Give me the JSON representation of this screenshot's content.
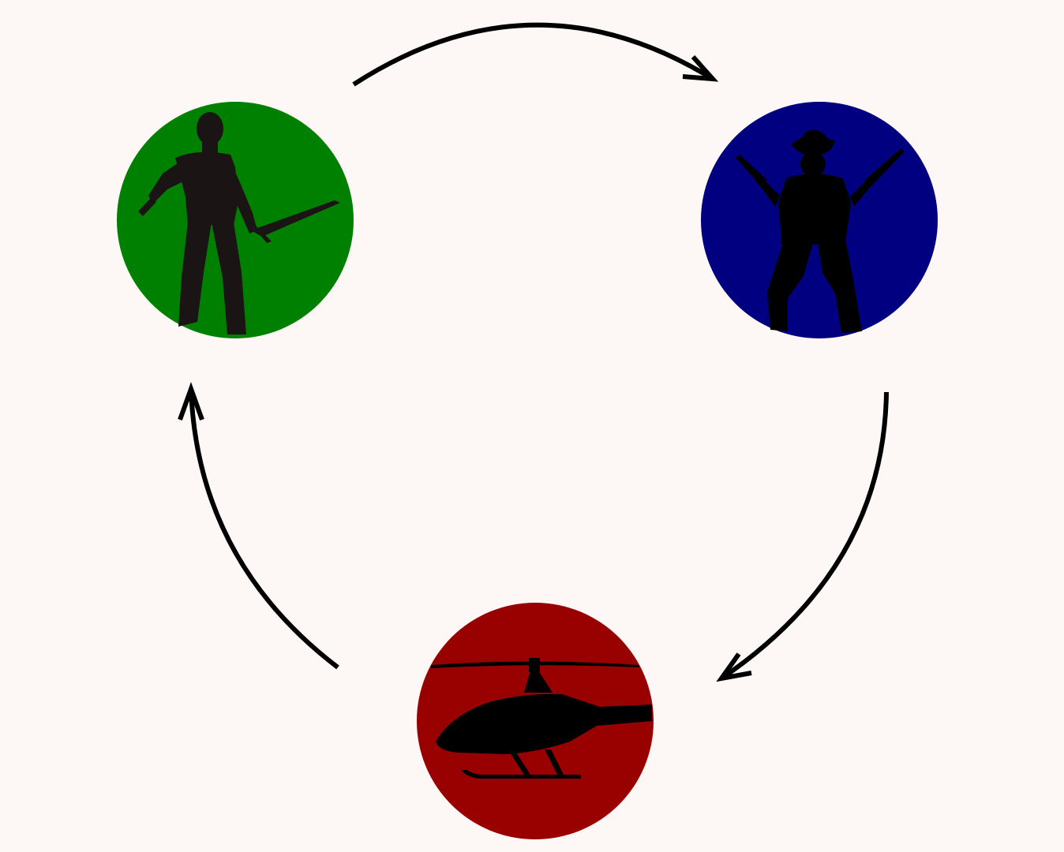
{
  "diagram": {
    "type": "cycle",
    "background_color": "#fdf8f6",
    "nodes": [
      {
        "id": "swordsman",
        "icon": "swordsman-silhouette-icon",
        "color": "#008000"
      },
      {
        "id": "gunslinger",
        "icon": "cowboy-gunslinger-silhouette-icon",
        "color": "#000080"
      },
      {
        "id": "helicopter",
        "icon": "helicopter-silhouette-icon",
        "color": "#990000"
      }
    ],
    "edges": [
      {
        "from": "swordsman",
        "to": "gunslinger"
      },
      {
        "from": "gunslinger",
        "to": "helicopter"
      },
      {
        "from": "helicopter",
        "to": "swordsman"
      }
    ],
    "arrow_color": "#000000"
  }
}
